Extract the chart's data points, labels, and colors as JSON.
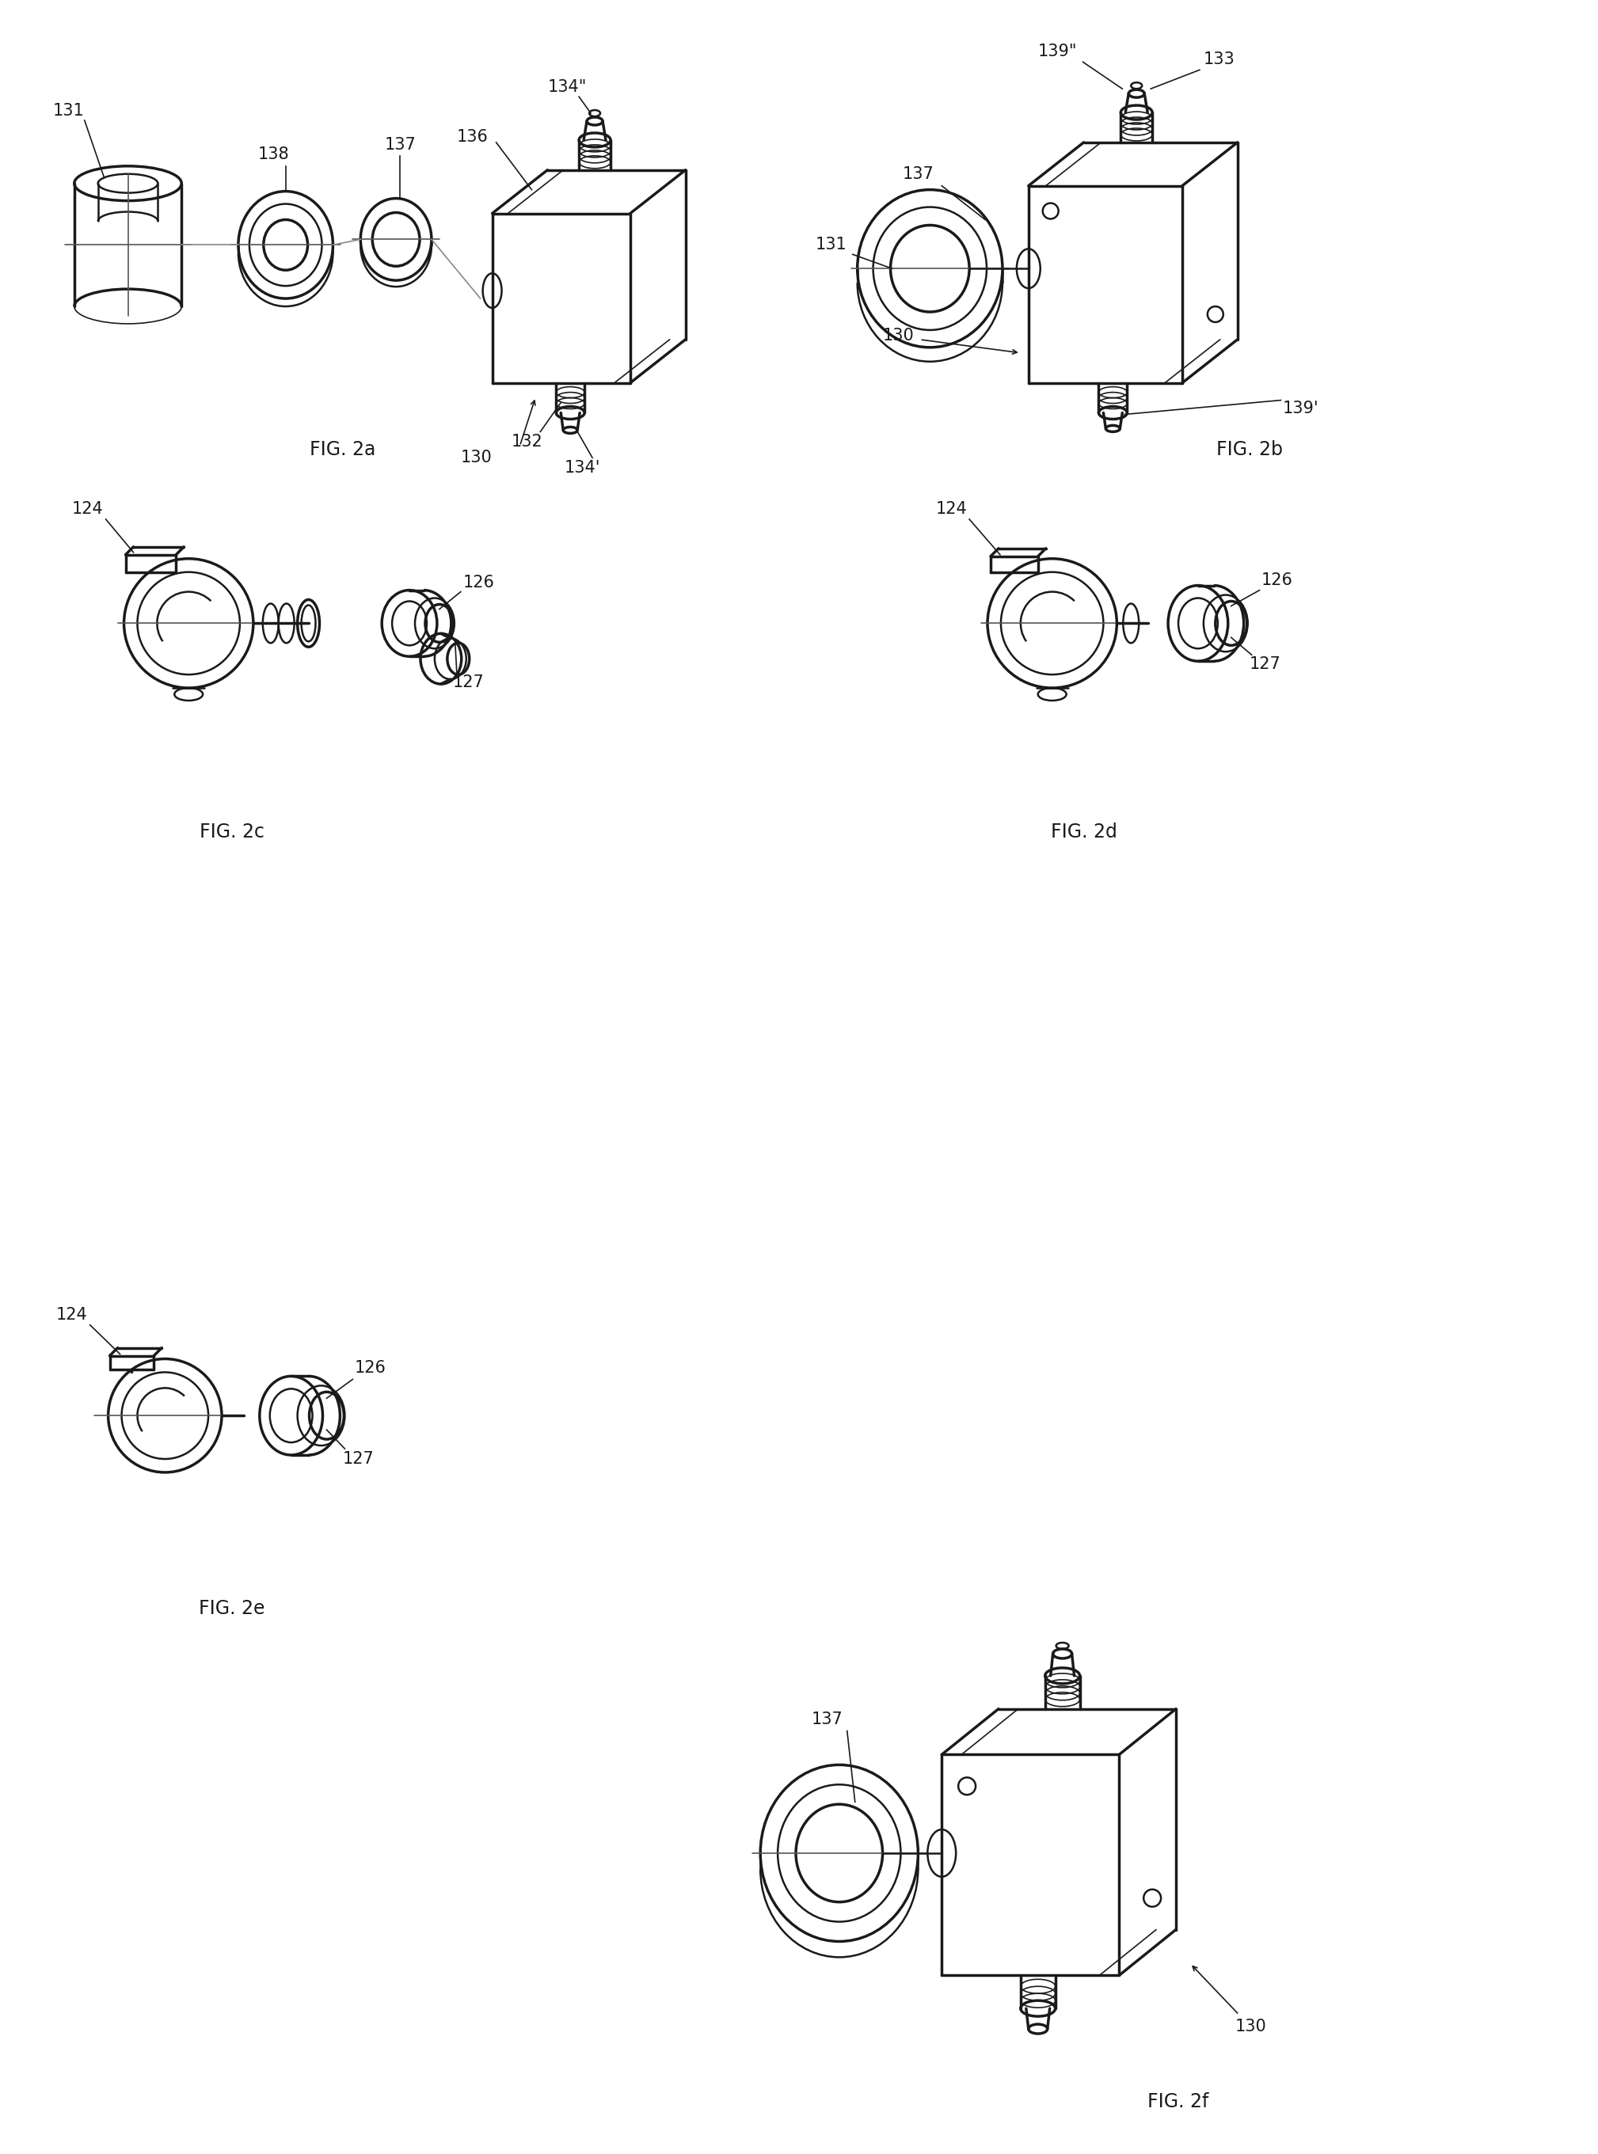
{
  "bg_color": "#ffffff",
  "line_color": "#1a1a1a",
  "lw_thin": 1.2,
  "lw_med": 1.8,
  "lw_thick": 2.5,
  "fs_label": 15,
  "fs_fig": 17,
  "fig2a_label": "FIG. 2a",
  "fig2b_label": "FIG. 2b",
  "fig2c_label": "FIG. 2c",
  "fig2d_label": "FIG. 2d",
  "fig2e_label": "FIG. 2e",
  "fig2f_label": "FIG. 2f"
}
